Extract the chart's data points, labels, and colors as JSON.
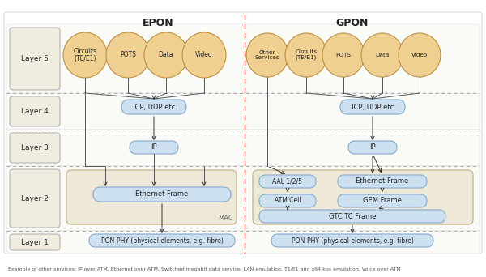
{
  "title_epon": "EPON",
  "title_gpon": "GPON",
  "bg_color": "#ffffff",
  "layer_label_bg": "#f0ede0",
  "box_blue_light": "#cce0f0",
  "box_blue_stroke": "#88aacc",
  "oval_fill": "#f0d090",
  "oval_stroke": "#c09040",
  "layer2_bg": "#ede8d8",
  "layer2_stroke": "#c0b080",
  "dashed_color": "#aaaaaa",
  "divider_color": "#cc3333",
  "arrow_color": "#333333",
  "text_color": "#222222",
  "layer_label_stroke": "#aaaaaa",
  "footnote": "Example of other services: IP over ATM, Ethernet over ATM, Switched megabit data service, LAN emulation, T1/E1 and x64 kps emulation, Voice over ATM"
}
